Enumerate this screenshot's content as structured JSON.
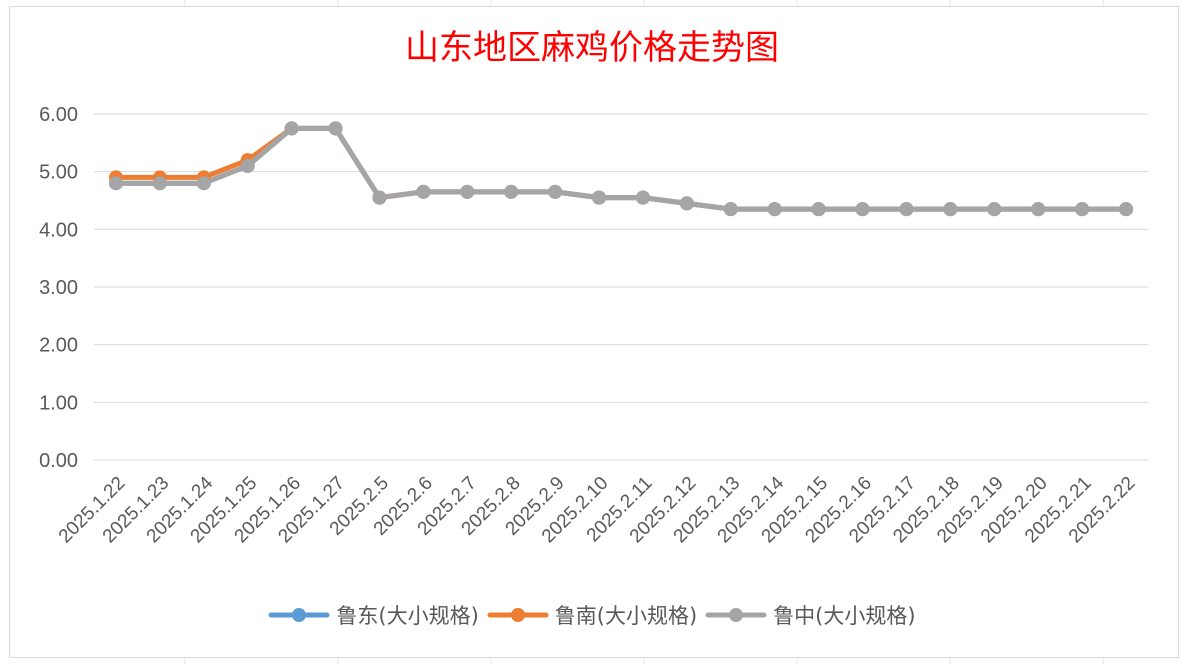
{
  "chart_data": {
    "type": "line",
    "title": "山东地区麻鸡价格走势图",
    "xlabel": "",
    "ylabel": "",
    "ylim": [
      0,
      6
    ],
    "y_ticks": [
      "0.00",
      "1.00",
      "2.00",
      "3.00",
      "4.00",
      "5.00",
      "6.00"
    ],
    "grid": true,
    "legend_position": "bottom",
    "categories": [
      "2025.1.22",
      "2025.1.23",
      "2025.1.24",
      "2025.1.25",
      "2025.1.26",
      "2025.1.27",
      "2025.2.5",
      "2025.2.6",
      "2025.2.7",
      "2025.2.8",
      "2025.2.9",
      "2025.2.10",
      "2025.2.11",
      "2025.2.12",
      "2025.2.13",
      "2025.2.14",
      "2025.2.15",
      "2025.2.16",
      "2025.2.17",
      "2025.2.18",
      "2025.2.19",
      "2025.2.20",
      "2025.2.21",
      "2025.2.22"
    ],
    "series": [
      {
        "name": "鲁东(大小规格)",
        "color": "#5b9bd5",
        "values": [
          4.8,
          4.8,
          4.8,
          5.1,
          5.75,
          5.75,
          4.55,
          4.65,
          4.65,
          4.65,
          4.65,
          4.55,
          4.55,
          4.45,
          4.35,
          4.35,
          4.35,
          4.35,
          4.35,
          4.35,
          4.35,
          4.35,
          4.35,
          4.35
        ]
      },
      {
        "name": "鲁南(大小规格)",
        "color": "#ed7d31",
        "values": [
          4.9,
          4.9,
          4.9,
          5.2,
          5.75,
          5.75,
          4.55,
          4.65,
          4.65,
          4.65,
          4.65,
          4.55,
          4.55,
          4.45,
          4.35,
          4.35,
          4.35,
          4.35,
          4.35,
          4.35,
          4.35,
          4.35,
          4.35,
          4.35
        ]
      },
      {
        "name": "鲁中(大小规格)",
        "color": "#a5a5a5",
        "values": [
          4.8,
          4.8,
          4.8,
          5.1,
          5.75,
          5.75,
          4.55,
          4.65,
          4.65,
          4.65,
          4.65,
          4.55,
          4.55,
          4.45,
          4.35,
          4.35,
          4.35,
          4.35,
          4.35,
          4.35,
          4.35,
          4.35,
          4.35,
          4.35
        ]
      }
    ]
  }
}
